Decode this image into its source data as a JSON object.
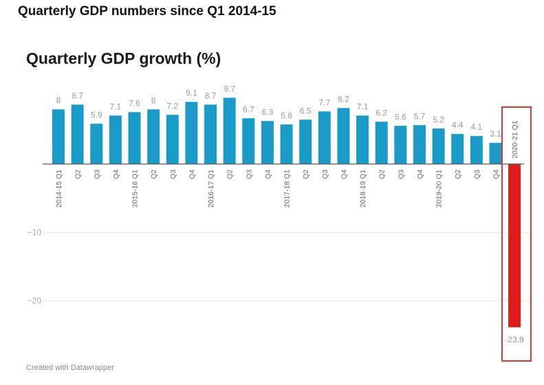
{
  "page": {
    "heading": "Quarterly GDP numbers since Q1 2014-15"
  },
  "credit": "Created with Datawrapper",
  "colors": {
    "bar": "#1a9bc7",
    "highlight_bar": "#e01a1a",
    "highlight_box": "#e8332f"
  },
  "chart_data": {
    "type": "bar",
    "title": "Quarterly GDP growth (%)",
    "xlabel": "",
    "ylabel": "",
    "ylim": [
      -25,
      10
    ],
    "yticks": [
      -10,
      -20
    ],
    "grid": true,
    "categories": [
      "2014-15 Q1",
      "Q2",
      "Q3",
      "Q4",
      "2015-16 Q1",
      "Q2",
      "Q3",
      "Q4",
      "2016-17 Q1",
      "Q2",
      "Q3",
      "Q4",
      "2017-18 Q1",
      "Q2",
      "Q3",
      "Q4",
      "2018-19 Q1",
      "Q2",
      "Q3",
      "Q4",
      "2019-20 Q1",
      "Q2",
      "Q3",
      "Q4",
      "2020-21 Q1"
    ],
    "values": [
      8,
      8.7,
      5.9,
      7.1,
      7.6,
      8,
      7.2,
      9.1,
      8.7,
      9.7,
      6.7,
      6.3,
      5.8,
      6.5,
      7.7,
      8.2,
      7.1,
      6.2,
      5.6,
      5.7,
      5.2,
      4.4,
      4.1,
      3.1,
      -23.9
    ],
    "value_labels": [
      "8",
      "8.7",
      "5.9",
      "7.1",
      "7.6",
      "8",
      "7.2",
      "9.1",
      "8.7",
      "9.7",
      "6.7",
      "6.3",
      "5.8",
      "6.5",
      "7.7",
      "8.2",
      "7.1",
      "6.2",
      "5.6",
      "5.7",
      "5.2",
      "4.4",
      "4.1",
      "3.1",
      "-23.9"
    ],
    "highlighted_category": "2020-21 Q1"
  }
}
